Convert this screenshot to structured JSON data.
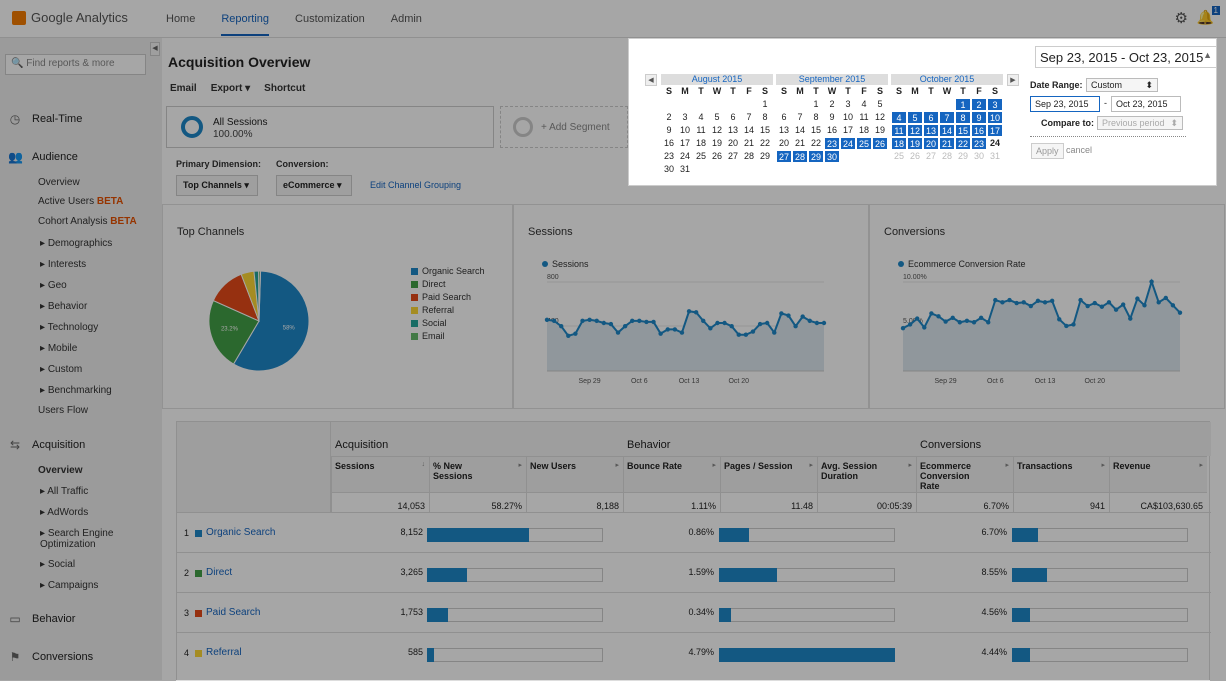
{
  "app": {
    "name": "Google Analytics"
  },
  "topnav": {
    "items": [
      "Home",
      "Reporting",
      "Customization",
      "Admin"
    ],
    "active": "Reporting",
    "notifications": "1"
  },
  "sidebar": {
    "search_placeholder": "Find reports & more",
    "realtime": "Real-Time",
    "audience": "Audience",
    "audience_items": [
      "Overview",
      "Active Users",
      "Cohort Analysis",
      "Demographics",
      "Interests",
      "Geo",
      "Behavior",
      "Technology",
      "Mobile",
      "Custom",
      "Benchmarking",
      "Users Flow"
    ],
    "beta": "BETA",
    "acquisition": "Acquisition",
    "acquisition_items": [
      "Overview",
      "All Traffic",
      "AdWords",
      "Search Engine Optimization",
      "Social",
      "Campaigns"
    ],
    "behavior": "Behavior",
    "conversions": "Conversions"
  },
  "page": {
    "title": "Acquisition Overview",
    "tools": [
      "Email",
      "Export",
      "Shortcut"
    ],
    "segment": {
      "name": "All Sessions",
      "pct": "100.00%"
    },
    "add_segment": "+ Add Segment",
    "primary_dim_label": "Primary Dimension:",
    "primary_dim_value": "Top Channels",
    "conversion_label": "Conversion:",
    "conversion_value": "eCommerce",
    "edit_grouping": "Edit Channel Grouping"
  },
  "daterange": {
    "display": "Sep 23, 2015 - Oct 23, 2015",
    "label": "Date Range:",
    "mode": "Custom",
    "start": "Sep 23, 2015",
    "end": "Oct 23, 2015",
    "dash": "-",
    "compare_label": "Compare to:",
    "compare_value": "Previous period",
    "apply": "Apply",
    "cancel": "cancel",
    "dow": [
      "S",
      "M",
      "T",
      "W",
      "T",
      "F",
      "S"
    ],
    "months": [
      {
        "name": "August 2015",
        "start_dow": 6,
        "days": 31,
        "sel_from": 99,
        "sel_to": 0
      },
      {
        "name": "September 2015",
        "start_dow": 2,
        "days": 30,
        "sel_from": 23,
        "sel_to": 30
      },
      {
        "name": "October 2015",
        "start_dow": 4,
        "days": 31,
        "sel_from": 1,
        "sel_to": 23,
        "today": 24
      }
    ]
  },
  "cards": {
    "top_channels": {
      "title": "Top Channels"
    },
    "sessions": {
      "title": "Sessions",
      "legend": "Sessions"
    },
    "conversions": {
      "title": "Conversions",
      "legend": "Ecommerce Conversion Rate"
    }
  },
  "chart_data": [
    {
      "type": "pie",
      "title": "Top Channels",
      "categories": [
        "Organic Search",
        "Direct",
        "Paid Search",
        "Referral",
        "Social",
        "Email"
      ],
      "values": [
        58.0,
        23.2,
        12.5,
        4.2,
        1.5,
        0.6
      ],
      "slice_labels": [
        "58%",
        "23.2%",
        "",
        "",
        "",
        ""
      ],
      "colors": [
        "#1e88c8",
        "#43a047",
        "#e64a19",
        "#fdd835",
        "#26a69a",
        "#66bb6a"
      ]
    },
    {
      "type": "area",
      "title": "Sessions",
      "series": [
        {
          "name": "Sessions",
          "values": [
            480,
            470,
            420,
            330,
            350,
            470,
            480,
            470,
            450,
            440,
            360,
            420,
            470,
            470,
            460,
            460,
            350,
            390,
            390,
            360,
            560,
            550,
            470,
            400,
            450,
            450,
            420,
            340,
            340,
            370,
            440,
            450,
            360,
            540,
            520,
            420,
            510,
            470,
            450,
            450
          ]
        }
      ],
      "yticks": [
        "800",
        "400"
      ],
      "ylim": [
        0,
        900
      ],
      "xticks": [
        "Sep 29",
        "Oct 6",
        "Oct 13",
        "Oct 20"
      ],
      "color": "#1e88c8"
    },
    {
      "type": "area",
      "title": "Conversions",
      "series": [
        {
          "name": "Ecommerce Conversion Rate",
          "values": [
            5.8,
            6.3,
            7.1,
            5.9,
            7.8,
            7.4,
            6.7,
            7.2,
            6.6,
            6.8,
            6.6,
            7.2,
            6.6,
            9.6,
            9.3,
            9.6,
            9.2,
            9.3,
            8.8,
            9.5,
            9.3,
            9.5,
            7.0,
            6.1,
            6.3,
            9.6,
            8.8,
            9.2,
            8.7,
            9.3,
            8.3,
            9.0,
            7.1,
            9.8,
            8.9,
            12.1,
            9.3,
            9.9,
            8.9,
            7.9
          ]
        }
      ],
      "yticks": [
        "10.00%",
        "5.00%"
      ],
      "ylim": [
        0,
        13
      ],
      "xticks": [
        "Sep 29",
        "Oct 6",
        "Oct 13",
        "Oct 20"
      ],
      "color": "#1e88c8"
    }
  ],
  "table": {
    "groups": [
      "Acquisition",
      "Behavior",
      "Conversions"
    ],
    "columns": [
      "Sessions",
      "% New Sessions",
      "New Users",
      "Bounce Rate",
      "Pages / Session",
      "Avg. Session Duration",
      "Ecommerce Conversion Rate",
      "Transactions",
      "Revenue"
    ],
    "totals": [
      "14,053",
      "58.27%",
      "8,188",
      "1.11%",
      "11.48",
      "00:05:39",
      "6.70%",
      "941",
      "CA$103,630.65"
    ],
    "rows": [
      {
        "idx": "1",
        "name": "Organic Search",
        "color": "#1e88c8",
        "sessions": "8,152",
        "sess_bar": 0.58,
        "bounce": "0.86%",
        "pages_bar": 0.17,
        "conv": "6.70%",
        "trans_bar": 0.15
      },
      {
        "idx": "2",
        "name": "Direct",
        "color": "#43a047",
        "sessions": "3,265",
        "sess_bar": 0.23,
        "bounce": "1.59%",
        "pages_bar": 0.33,
        "conv": "8.55%",
        "trans_bar": 0.2
      },
      {
        "idx": "3",
        "name": "Paid Search",
        "color": "#e64a19",
        "sessions": "1,753",
        "sess_bar": 0.12,
        "bounce": "0.34%",
        "pages_bar": 0.07,
        "conv": "4.56%",
        "trans_bar": 0.1
      },
      {
        "idx": "4",
        "name": "Referral",
        "color": "#fdd835",
        "sessions": "585",
        "sess_bar": 0.04,
        "bounce": "4.79%",
        "pages_bar": 1.0,
        "conv": "4.44%",
        "trans_bar": 0.1
      }
    ]
  }
}
